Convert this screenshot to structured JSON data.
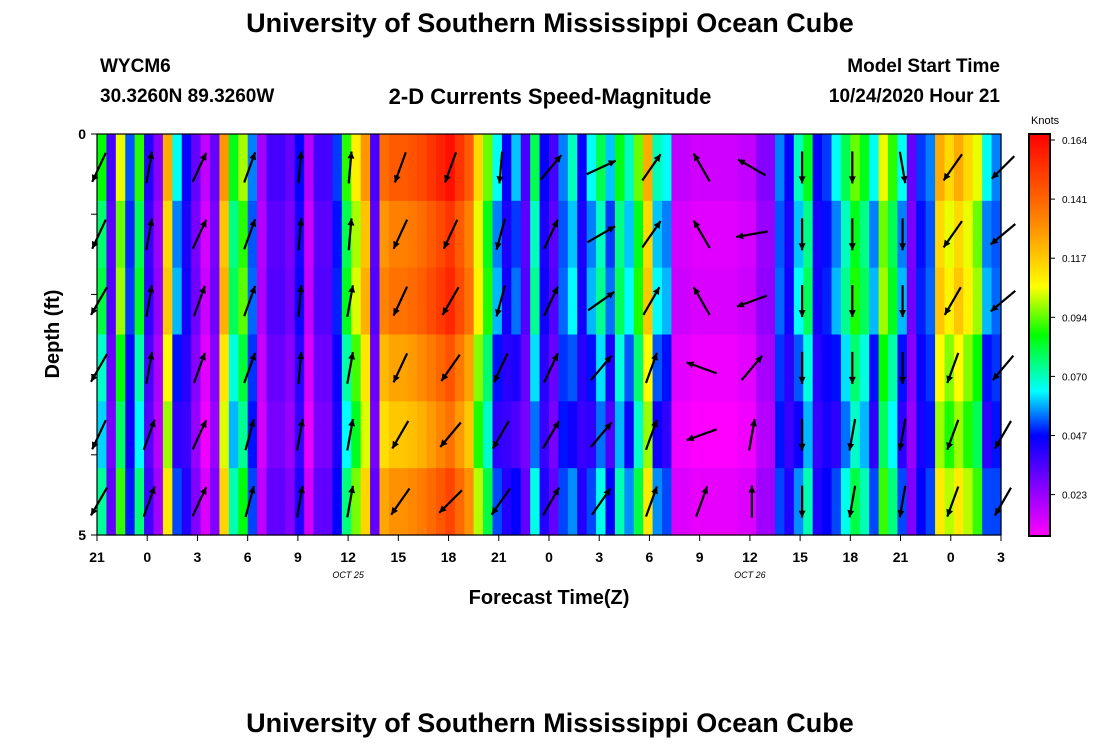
{
  "header": {
    "title": "University of Southern Mississippi Ocean Cube",
    "station": "WYCM6",
    "coordinates": "30.3260N 89.3260W",
    "plot_title": "2-D Currents Speed-Magnitude",
    "model_start_label": "Model Start Time",
    "model_start_value": "10/24/2020 Hour 21"
  },
  "footer": {
    "title": "University of Southern Mississippi Ocean Cube"
  },
  "chart_data": {
    "type": "heatmap",
    "title": "2-D Currents Speed-Magnitude",
    "xlabel": "Forecast Time(Z)",
    "ylabel": "Depth (ft)",
    "x_tick_labels": [
      "21",
      "0",
      "3",
      "6",
      "9",
      "12",
      "15",
      "18",
      "21",
      "0",
      "3",
      "6",
      "9",
      "12",
      "15",
      "18",
      "21",
      "0",
      "3"
    ],
    "date_labels": [
      {
        "after_tick": 5,
        "text": "OCT 25"
      },
      {
        "after_tick": 13,
        "text": "OCT 26"
      }
    ],
    "y_tick_labels": [
      "0",
      "5"
    ],
    "ylim": [
      0,
      5
    ],
    "colorbar": {
      "label": "Knots",
      "ticks": [
        "0.164",
        "0.141",
        "0.117",
        "0.094",
        "0.070",
        "0.047",
        "0.023"
      ],
      "min": 0.0,
      "max": 0.164
    },
    "column_speeds": [
      0.082,
      0.03,
      0.1,
      0.047,
      0.085,
      0.035,
      0.02,
      0.12,
      0.06,
      0.04,
      0.025,
      0.01,
      0.025,
      0.125,
      0.08,
      0.095,
      0.05,
      0.015,
      0.03,
      0.03,
      0.025,
      0.04,
      0.012,
      0.03,
      0.03,
      0.045,
      0.085,
      0.105,
      0.125,
      0.03,
      0.135,
      0.14,
      0.14,
      0.142,
      0.145,
      0.15,
      0.155,
      0.16,
      0.15,
      0.14,
      0.11,
      0.09,
      0.06,
      0.04,
      0.055,
      0.03,
      0.075,
      0.04,
      0.03,
      0.05,
      0.065,
      0.04,
      0.06,
      0.075,
      0.055,
      0.08,
      0.065,
      0.09,
      0.12,
      0.065,
      0.06,
      0.01,
      0.01,
      0.008,
      0.008,
      0.008,
      0.008,
      0.008,
      0.01,
      0.01,
      0.02,
      0.02,
      0.05,
      0.04,
      0.065,
      0.08,
      0.04,
      0.045,
      0.06,
      0.075,
      0.09,
      0.08,
      0.06,
      0.1,
      0.085,
      0.06,
      0.025,
      0.045,
      0.05,
      0.12,
      0.11,
      0.12,
      0.11,
      0.1,
      0.06,
      0.05
    ],
    "depth_row_offsets": [
      0.0,
      -0.01,
      -0.006,
      -0.018,
      -0.026,
      -0.014
    ],
    "arrow_columns": [
      {
        "time_index": 0,
        "dirs_deg": [
          -25,
          -25,
          -30,
          -30,
          -25,
          -30
        ]
      },
      {
        "time_index": 1,
        "dirs_deg": [
          170,
          170,
          170,
          170,
          160,
          160
        ]
      },
      {
        "time_index": 2,
        "dirs_deg": [
          155,
          155,
          160,
          160,
          155,
          155
        ]
      },
      {
        "time_index": 3,
        "dirs_deg": [
          160,
          160,
          160,
          160,
          165,
          165
        ]
      },
      {
        "time_index": 4,
        "dirs_deg": [
          175,
          175,
          175,
          175,
          170,
          170
        ]
      },
      {
        "time_index": 5,
        "dirs_deg": [
          175,
          175,
          170,
          170,
          170,
          170
        ]
      },
      {
        "time_index": 6,
        "dirs_deg": [
          -20,
          -25,
          -25,
          -25,
          -30,
          -35
        ]
      },
      {
        "time_index": 7,
        "dirs_deg": [
          -20,
          -25,
          -30,
          -35,
          -40,
          -45
        ]
      },
      {
        "time_index": 8,
        "dirs_deg": [
          -5,
          -15,
          -15,
          -25,
          -30,
          -35
        ]
      },
      {
        "time_index": 9,
        "dirs_deg": [
          140,
          155,
          155,
          155,
          150,
          150
        ]
      },
      {
        "time_index": 10,
        "dirs_deg": [
          115,
          120,
          125,
          140,
          140,
          145
        ]
      },
      {
        "time_index": 11,
        "dirs_deg": [
          145,
          145,
          150,
          160,
          160,
          160
        ]
      },
      {
        "time_index": 12,
        "dirs_deg": [
          -150,
          -150,
          -150,
          -110,
          -70,
          160
        ]
      },
      {
        "time_index": 13,
        "dirs_deg": [
          -120,
          -80,
          -70,
          140,
          170,
          180
        ]
      },
      {
        "time_index": 14,
        "dirs_deg": [
          0,
          0,
          0,
          0,
          0,
          0
        ]
      },
      {
        "time_index": 15,
        "dirs_deg": [
          0,
          0,
          0,
          0,
          -10,
          -10
        ]
      },
      {
        "time_index": 16,
        "dirs_deg": [
          10,
          0,
          0,
          0,
          -10,
          -10
        ]
      },
      {
        "time_index": 17,
        "dirs_deg": [
          -35,
          -35,
          -30,
          -20,
          -20,
          -20
        ]
      },
      {
        "time_index": 18,
        "dirs_deg": [
          -45,
          -50,
          -50,
          -40,
          -30,
          -30
        ]
      }
    ]
  }
}
